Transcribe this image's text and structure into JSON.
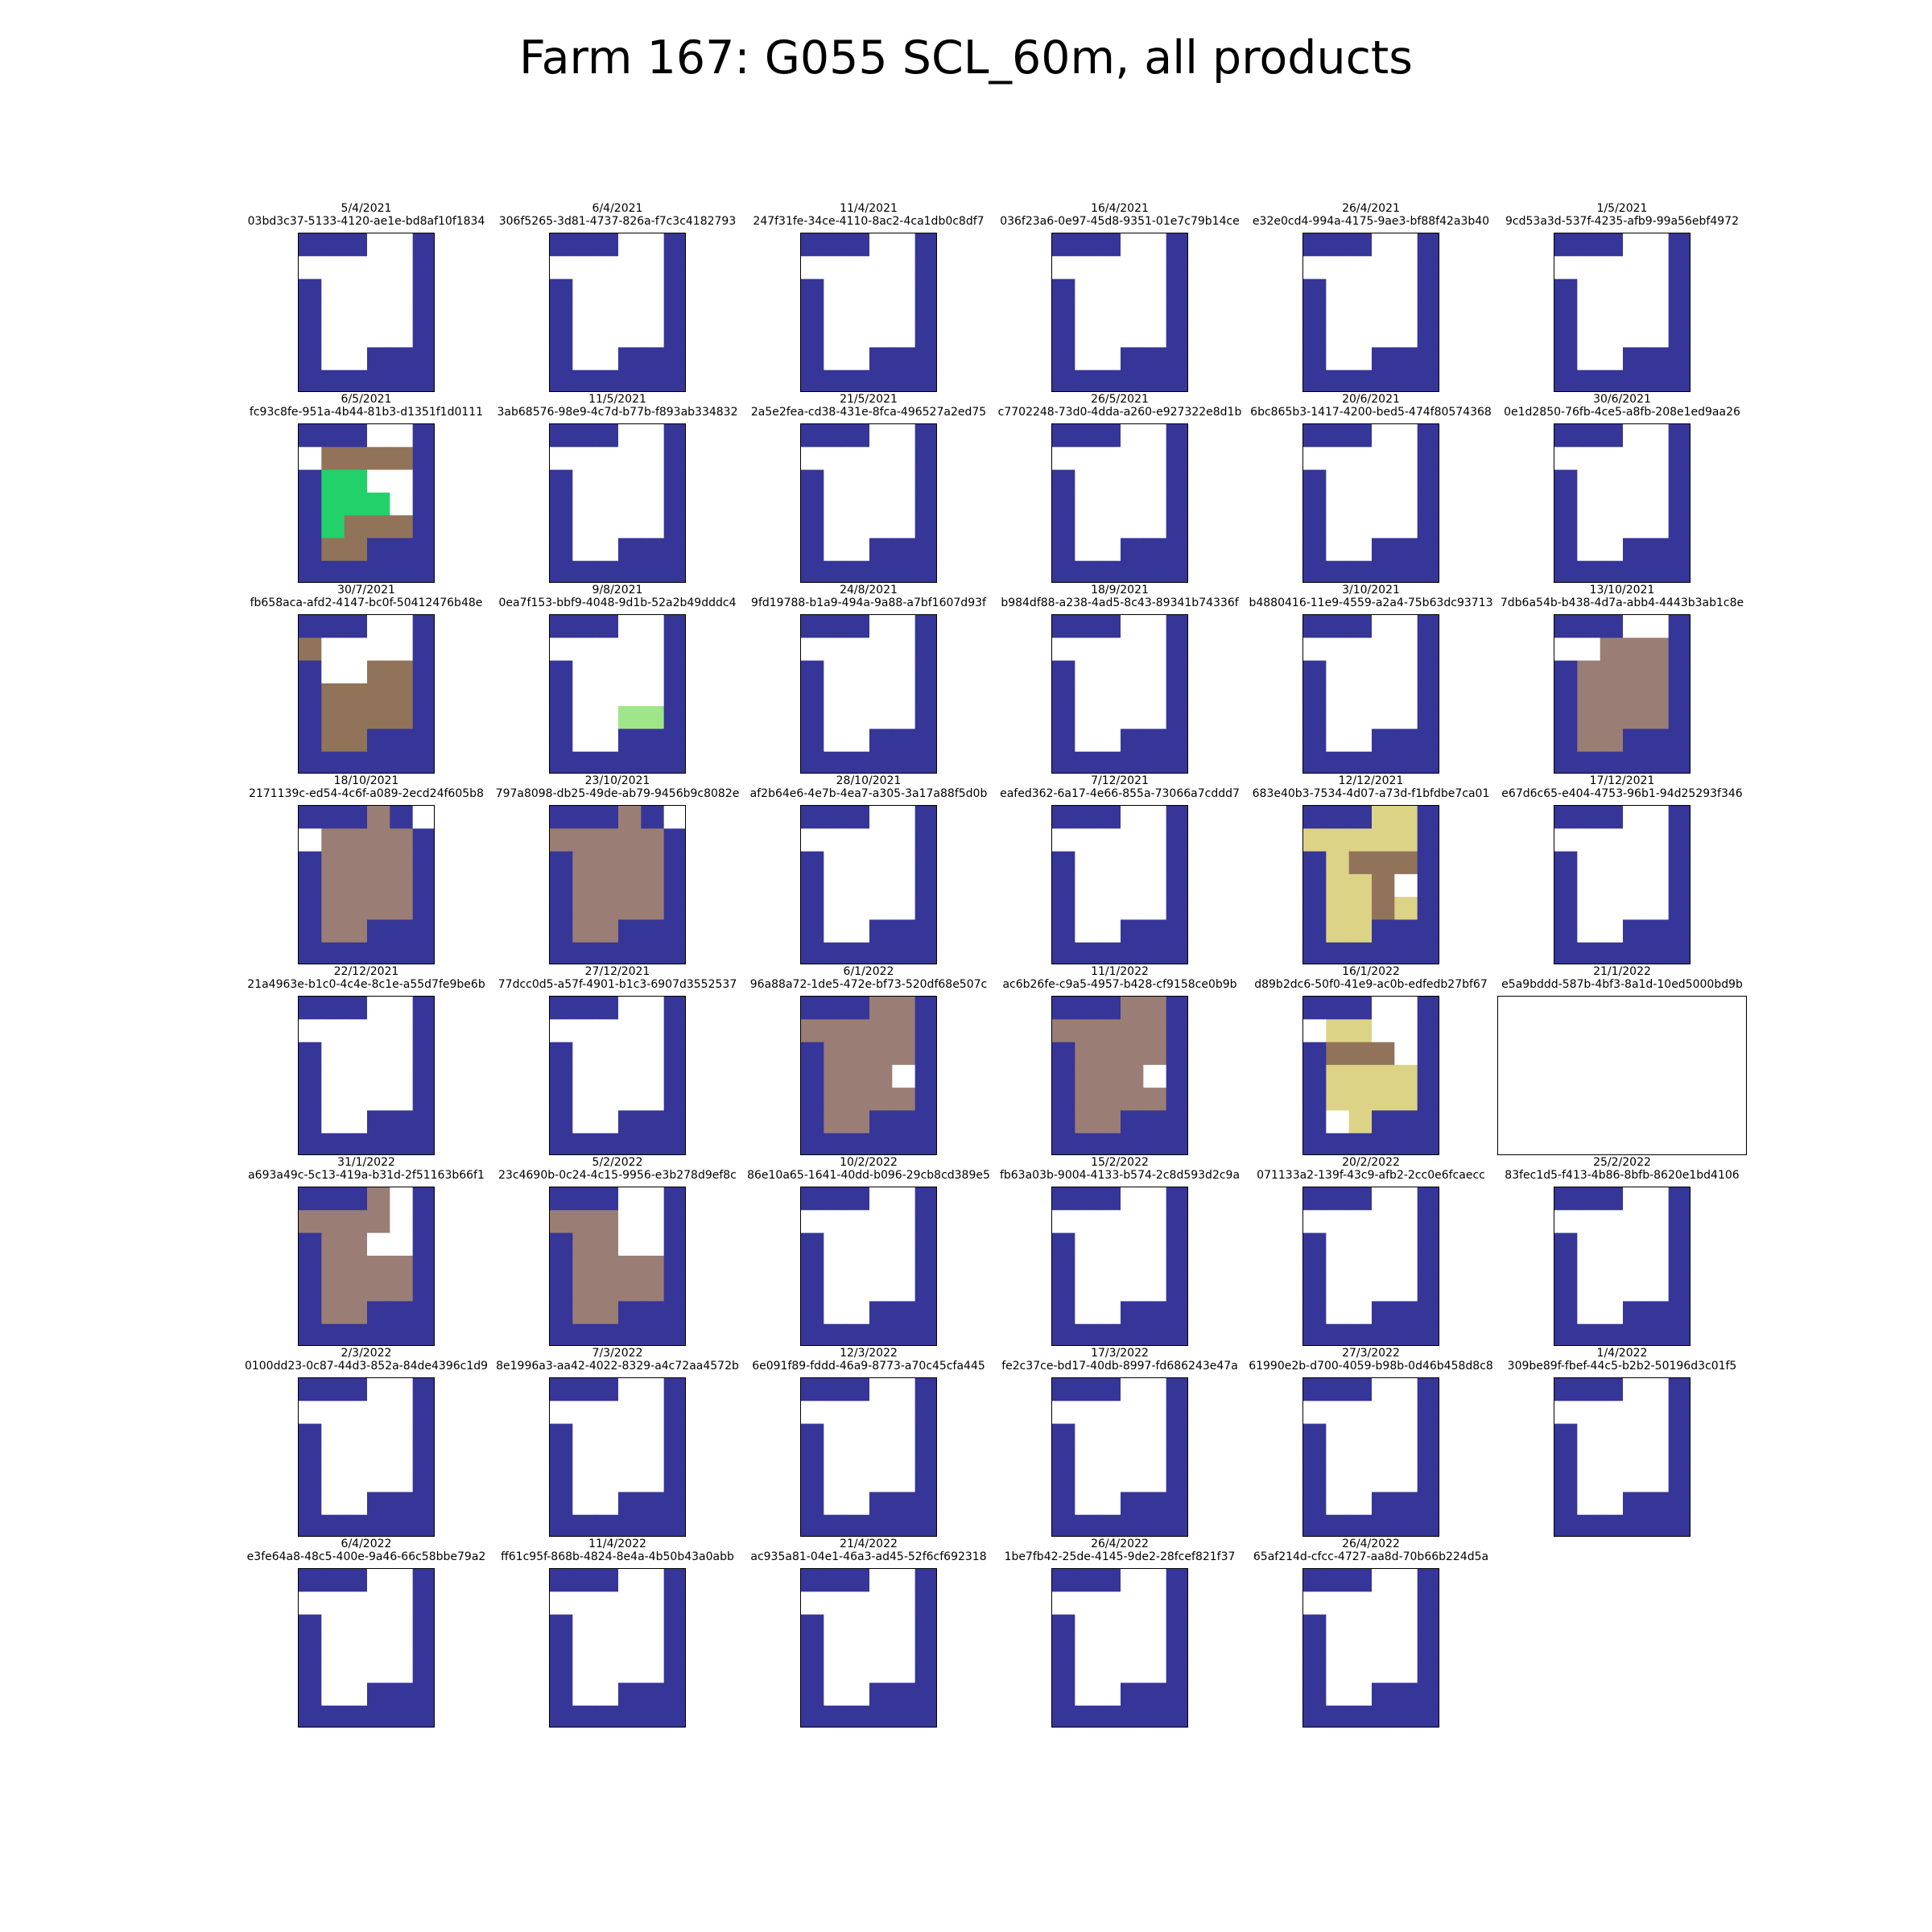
{
  "title": "Farm 167: G055 SCL_60m, all products",
  "colors": {
    "nodata": "#ffffff",
    "blue": "#363598",
    "brown": "#91735a",
    "mauve": "#9a7d74",
    "green": "#23d16a",
    "lightgreen": "#9ee689",
    "khaki": "#dcd386"
  },
  "chart_data": {
    "type": "heatmap",
    "grid": {
      "rows": 7,
      "cols": 6
    },
    "panels": [
      {
        "date": "5/4/2021",
        "id": "03bd3c37-5133-4120-ae1e-bd8af10f1834",
        "pattern": "std"
      },
      {
        "date": "6/4/2021",
        "id": "306f5265-3d81-4737-826a-f7c3c4182793",
        "pattern": "std"
      },
      {
        "date": "11/4/2021",
        "id": "247f31fe-34ce-4110-8ac2-4ca1db0c8df7",
        "pattern": "std"
      },
      {
        "date": "16/4/2021",
        "id": "036f23a6-0e97-45d8-9351-01e7c79b14ce",
        "pattern": "std"
      },
      {
        "date": "26/4/2021",
        "id": "e32e0cd4-994a-4175-9ae3-bf88f42a3b40",
        "pattern": "std"
      },
      {
        "date": "1/5/2021",
        "id": "9cd53a3d-537f-4235-afb9-99a56ebf4972",
        "pattern": "std"
      },
      {
        "date": "6/5/2021",
        "id": "fc93c8fe-951a-4b44-81b3-d1351f1d0111",
        "pattern": "p0605"
      },
      {
        "date": "11/5/2021",
        "id": "3ab68576-98e9-4c7d-b77b-f893ab334832",
        "pattern": "std"
      },
      {
        "date": "21/5/2021",
        "id": "2a5e2fea-cd38-431e-8fca-496527a2ed75",
        "pattern": "std"
      },
      {
        "date": "26/5/2021",
        "id": "c7702248-73d0-4dda-a260-e927322e8d1b",
        "pattern": "std"
      },
      {
        "date": "20/6/2021",
        "id": "6bc865b3-1417-4200-bed5-474f80574368",
        "pattern": "std"
      },
      {
        "date": "30/6/2021",
        "id": "0e1d2850-76fb-4ce5-a8fb-208e1ed9aa26",
        "pattern": "std"
      },
      {
        "date": "30/7/2021",
        "id": "fb658aca-afd2-4147-bc0f-50412476b48e",
        "pattern": "p3007"
      },
      {
        "date": "9/8/2021",
        "id": "0ea7f153-bbf9-4048-9d1b-52a2b49dddc4",
        "pattern": "p0908"
      },
      {
        "date": "24/8/2021",
        "id": "9fd19788-b1a9-494a-9a88-a7bf1607d93f",
        "pattern": "std"
      },
      {
        "date": "18/9/2021",
        "id": "b984df88-a238-4ad5-8c43-89341b74336f",
        "pattern": "std"
      },
      {
        "date": "3/10/2021",
        "id": "b4880416-11e9-4559-a2a4-75b63dc93713",
        "pattern": "std"
      },
      {
        "date": "13/10/2021",
        "id": "7db6a54b-b438-4d7a-abb4-4443b3ab1c8e",
        "pattern": "p1310"
      },
      {
        "date": "18/10/2021",
        "id": "2171139c-ed54-4c6f-a089-2ecd24f605b8",
        "pattern": "p1810"
      },
      {
        "date": "23/10/2021",
        "id": "797a8098-db25-49de-ab79-9456b9c8082e",
        "pattern": "p2310"
      },
      {
        "date": "28/10/2021",
        "id": "af2b64e6-4e7b-4ea7-a305-3a17a88f5d0b",
        "pattern": "std"
      },
      {
        "date": "7/12/2021",
        "id": "eafed362-6a17-4e66-855a-73066a7cddd7",
        "pattern": "std"
      },
      {
        "date": "12/12/2021",
        "id": "683e40b3-7534-4d07-a73d-f1bfdbe7ca01",
        "pattern": "p1212"
      },
      {
        "date": "17/12/2021",
        "id": "e67d6c65-e404-4753-96b1-94d25293f346",
        "pattern": "std"
      },
      {
        "date": "22/12/2021",
        "id": "21a4963e-b1c0-4c4e-8c1e-a55d7fe9be6b",
        "pattern": "std"
      },
      {
        "date": "27/12/2021",
        "id": "77dcc0d5-a57f-4901-b1c3-6907d3552537",
        "pattern": "std"
      },
      {
        "date": "6/1/2022",
        "id": "96a88a72-1de5-472e-bf73-520df68e507c",
        "pattern": "p0601"
      },
      {
        "date": "11/1/2022",
        "id": "ac6b26fe-c9a5-4957-b428-cf9158ce0b9b",
        "pattern": "p1101"
      },
      {
        "date": "16/1/2022",
        "id": "d89b2dc6-50f0-41e9-ac0b-edfedb27bf67",
        "pattern": "p1601"
      },
      {
        "date": "21/1/2022",
        "id": "e5a9bddd-587b-4bf3-8a1d-10ed5000bd9b",
        "pattern": "empty"
      },
      {
        "date": "31/1/2022",
        "id": "a693a49c-5c13-419a-b31d-2f51163b66f1",
        "pattern": "p3101"
      },
      {
        "date": "5/2/2022",
        "id": "23c4690b-0c24-4c15-9956-e3b278d9ef8c",
        "pattern": "p0502"
      },
      {
        "date": "10/2/2022",
        "id": "86e10a65-1641-40dd-b096-29cb8cd389e5",
        "pattern": "std"
      },
      {
        "date": "15/2/2022",
        "id": "fb63a03b-9004-4133-b574-2c8d593d2c9a",
        "pattern": "std"
      },
      {
        "date": "20/2/2022",
        "id": "071133a2-139f-43c9-afb2-2cc0e6fcaecc",
        "pattern": "std"
      },
      {
        "date": "25/2/2022",
        "id": "83fec1d5-f413-4b86-8bfb-8620e1bd4106",
        "pattern": "std"
      },
      {
        "date": "2/3/2022",
        "id": "0100dd23-0c87-44d3-852a-84de4396c1d9",
        "pattern": "std"
      },
      {
        "date": "7/3/2022",
        "id": "8e1996a3-aa42-4022-8329-a4c72aa4572b",
        "pattern": "std"
      },
      {
        "date": "12/3/2022",
        "id": "6e091f89-fddd-46a9-8773-a70c45cfa445",
        "pattern": "std"
      },
      {
        "date": "17/3/2022",
        "id": "fe2c37ce-bd17-40db-8997-fd686243e47a",
        "pattern": "std"
      },
      {
        "date": "27/3/2022",
        "id": "61990e2b-d700-4059-b98b-0d46b458d8c8",
        "pattern": "std"
      },
      {
        "date": "1/4/2022",
        "id": "309be89f-fbef-44c5-b2b2-50196d3c01f5",
        "pattern": "std"
      },
      {
        "date": "6/4/2022",
        "id": "e3fe64a8-48c5-400e-9a46-66c58bbe79a2",
        "pattern": "std"
      },
      {
        "date": "11/4/2022",
        "id": "ff61c95f-868b-4824-8e4a-4b50b43a0abb",
        "pattern": "std"
      },
      {
        "date": "21/4/2022",
        "id": "ac935a81-04e1-46a3-ad45-52f6cf692318",
        "pattern": "std"
      },
      {
        "date": "26/4/2022",
        "id": "1be7fb42-25de-4145-9de2-28fcef821f37",
        "pattern": "std"
      },
      {
        "date": "26/4/2022",
        "id": "65af214d-cfcc-4727-aa8d-70b66b224d5a",
        "pattern": "std"
      }
    ],
    "patterns": {
      "std": [
        "BBBWWB",
        "WWWWWB",
        "BWWWWB",
        "BWWWWB",
        "BWWWWB",
        "BWWBBB",
        "BBBBBB"
      ],
      "p0605": [
        "BBBWWB",
        "WRRRRB",
        "BGGWWB",
        "BGGGWB",
        "BGRRRB",
        "BRRBBB",
        "BBBBBB"
      ],
      "p3007": [
        "BBBWWB",
        "RWWWWB",
        "BWWRRB",
        "BRRRRB",
        "BRRRRB",
        "BRRBBB",
        "BBBBBB"
      ],
      "p0908": [
        "BBBWWB",
        "WWWWWB",
        "BWWWWB",
        "BWWWWB",
        "BWWLLB",
        "BWWBBB",
        "BBBBBB"
      ],
      "p1310": [
        "BBBWWB",
        "WWMMMB",
        "BMMMMB",
        "BMMMMB",
        "BMMMMB",
        "BMMBBB",
        "BBBBBB"
      ],
      "p1810": [
        "BBBMBW",
        "WMMMMB",
        "BMMMMB",
        "BMMMMB",
        "BMMMMB",
        "BMMBBB",
        "BBBBBB"
      ],
      "p2310": [
        "BBBMBW",
        "MMMMMB",
        "BMMMMB",
        "BMMMMB",
        "BMMMMB",
        "BMMBBB",
        "BBBBBB"
      ],
      "p1212": [
        "BBBKKB",
        "KKKKKB",
        "BKRRRB",
        "BKKRWB",
        "BKKRKB",
        "BKKBBB",
        "BBBBBB"
      ],
      "p0601": [
        "BBBMMB",
        "MMMMMB",
        "BMMMMB",
        "BMMMWB",
        "BMMMMB",
        "BMMBBB",
        "BBBBBB"
      ],
      "p1101": [
        "BBBMMB",
        "MMMMMB",
        "BMMMMB",
        "BMMMWB",
        "BMMMMB",
        "BMMBBB",
        "BBBBBB"
      ],
      "p1601": [
        "BBBWWB",
        "WKKWWB",
        "BRRRWB",
        "BKKKKB",
        "BKKKKB",
        "BWKBBB",
        "BBBBBB"
      ],
      "p3101": [
        "BBBMWB",
        "MMMMWB",
        "BMMWWB",
        "BMMMMB",
        "BMMMMB",
        "BMMBBB",
        "BBBBBB"
      ],
      "p0502": [
        "BBBWWB",
        "MMMWWB",
        "BMMWWB",
        "BMMMMB",
        "BMMMMB",
        "BMMBBB",
        "BBBBBB"
      ]
    }
  }
}
